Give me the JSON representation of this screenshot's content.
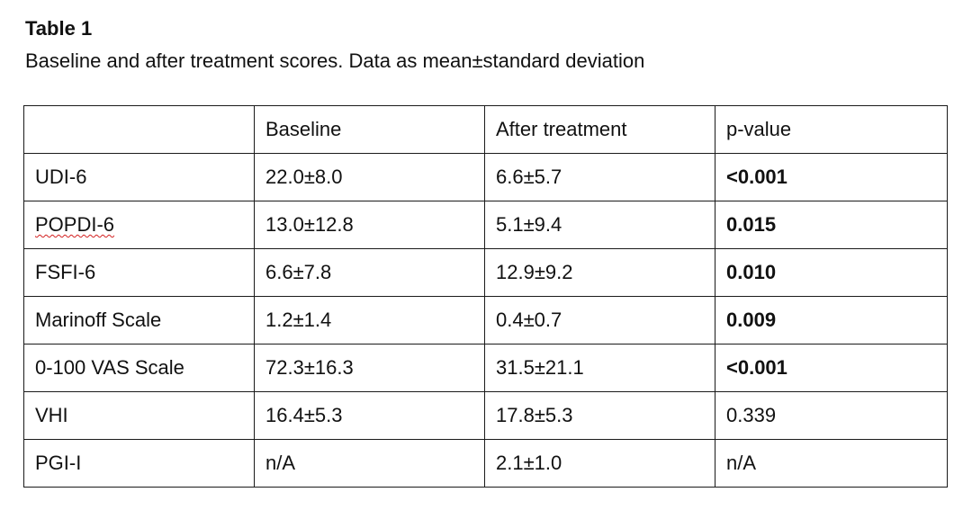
{
  "title": "Table 1",
  "caption": "Baseline and after treatment scores. Data as mean±standard deviation",
  "columns": [
    "",
    "Baseline",
    "After treatment",
    "p-value"
  ],
  "rows": [
    {
      "measure": "UDI-6",
      "baseline": "22.0±8.0",
      "after": "6.6±5.7",
      "p": "<0.001",
      "p_bold": true
    },
    {
      "measure": "POPDI-6",
      "baseline": "13.0±12.8",
      "after": "5.1±9.4",
      "p": "0.015",
      "p_bold": true
    },
    {
      "measure": "FSFI-6",
      "baseline": "6.6±7.8",
      "after": "12.9±9.2",
      "p": "0.010",
      "p_bold": true
    },
    {
      "measure": "Marinoff Scale",
      "baseline": "1.2±1.4",
      "after": "0.4±0.7",
      "p": "0.009",
      "p_bold": true
    },
    {
      "measure": "0-100 VAS Scale",
      "baseline": "72.3±16.3",
      "after": "31.5±21.1",
      "p": "<0.001",
      "p_bold": true
    },
    {
      "measure": "VHI",
      "baseline": "16.4±5.3",
      "after": "17.8±5.3",
      "p": "0.339",
      "p_bold": false
    },
    {
      "measure": "PGI-I",
      "baseline": "n/A",
      "after": "2.1±1.0",
      "p": "n/A",
      "p_bold": false
    }
  ]
}
